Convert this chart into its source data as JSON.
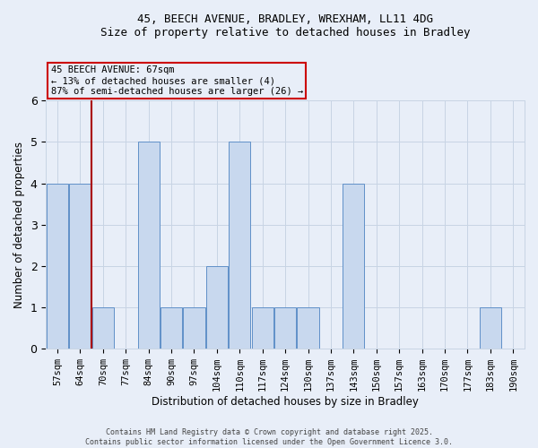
{
  "title_line1": "45, BEECH AVENUE, BRADLEY, WREXHAM, LL11 4DG",
  "title_line2": "Size of property relative to detached houses in Bradley",
  "xlabel": "Distribution of detached houses by size in Bradley",
  "ylabel": "Number of detached properties",
  "categories": [
    "57sqm",
    "64sqm",
    "70sqm",
    "77sqm",
    "84sqm",
    "90sqm",
    "97sqm",
    "104sqm",
    "110sqm",
    "117sqm",
    "124sqm",
    "130sqm",
    "137sqm",
    "143sqm",
    "150sqm",
    "157sqm",
    "163sqm",
    "170sqm",
    "177sqm",
    "183sqm",
    "190sqm"
  ],
  "values": [
    4,
    4,
    1,
    0,
    5,
    1,
    1,
    2,
    5,
    1,
    1,
    1,
    0,
    4,
    0,
    0,
    0,
    0,
    0,
    1,
    0
  ],
  "bar_color": "#c8d8ee",
  "bar_edge_color": "#6090c8",
  "grid_color": "#c8d4e4",
  "background_color": "#e8eef8",
  "ylim": [
    0,
    6
  ],
  "property_line_color": "#aa0000",
  "annotation_text": "45 BEECH AVENUE: 67sqm\n← 13% of detached houses are smaller (4)\n87% of semi-detached houses are larger (26) →",
  "annotation_box_color": "#cc0000",
  "footer_line1": "Contains HM Land Registry data © Crown copyright and database right 2025.",
  "footer_line2": "Contains public sector information licensed under the Open Government Licence 3.0."
}
